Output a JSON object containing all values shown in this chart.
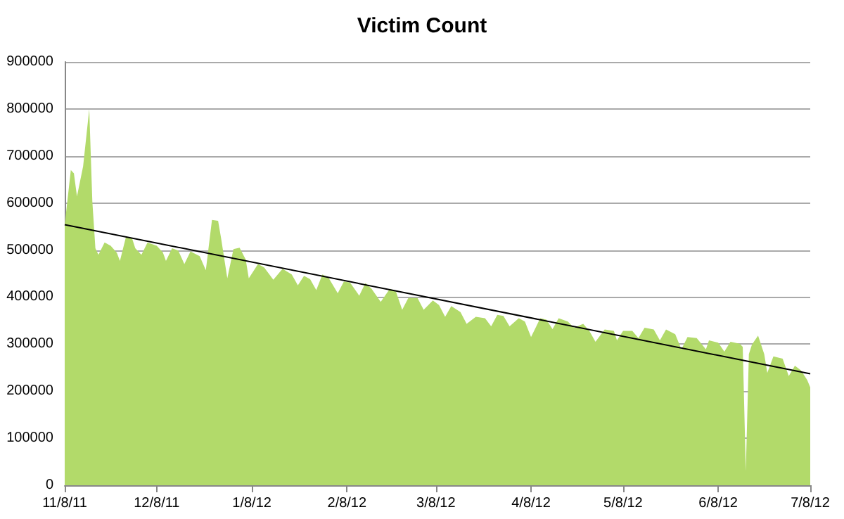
{
  "chart_data": {
    "type": "area",
    "title": "Victim Count",
    "xlim": [
      "2011-11-08",
      "2012-07-08"
    ],
    "xticks": [
      {
        "value": "2011-11-08",
        "label": "11/8/11"
      },
      {
        "value": "2011-12-08",
        "label": "12/8/11"
      },
      {
        "value": "2012-01-08",
        "label": "1/8/12"
      },
      {
        "value": "2012-02-08",
        "label": "2/8/12"
      },
      {
        "value": "2012-03-08",
        "label": "3/8/12"
      },
      {
        "value": "2012-04-08",
        "label": "4/8/12"
      },
      {
        "value": "2012-05-08",
        "label": "5/8/12"
      },
      {
        "value": "2012-06-08",
        "label": "6/8/12"
      },
      {
        "value": "2012-07-08",
        "label": "7/8/12"
      }
    ],
    "ylim": [
      0,
      900000
    ],
    "yticks": [
      0,
      100000,
      200000,
      300000,
      400000,
      500000,
      600000,
      700000,
      800000,
      900000
    ],
    "grid": "y",
    "marker": "none",
    "series": [
      {
        "color": "#b2da6a",
        "x": [
          "2011-11-08",
          "2011-11-10",
          "2011-11-11",
          "2011-11-12",
          "2011-11-14",
          "2011-11-16",
          "2011-11-17",
          "2011-11-18",
          "2011-11-19",
          "2011-11-21",
          "2011-11-23",
          "2011-11-25",
          "2011-11-26",
          "2011-11-28",
          "2011-11-30",
          "2011-12-01",
          "2011-12-03",
          "2011-12-05",
          "2011-12-08",
          "2011-12-10",
          "2011-12-11",
          "2011-12-13",
          "2011-12-15",
          "2011-12-17",
          "2011-12-19",
          "2011-12-22",
          "2011-12-24",
          "2011-12-26",
          "2011-12-28",
          "2011-12-29",
          "2011-12-31",
          "2012-01-02",
          "2012-01-04",
          "2012-01-06",
          "2012-01-07",
          "2012-01-10",
          "2012-01-12",
          "2012-01-15",
          "2012-01-18",
          "2012-01-21",
          "2012-01-23",
          "2012-01-25",
          "2012-01-27",
          "2012-01-29",
          "2012-01-31",
          "2012-02-02",
          "2012-02-05",
          "2012-02-07",
          "2012-02-09",
          "2012-02-12",
          "2012-02-14",
          "2012-02-16",
          "2012-02-19",
          "2012-02-22",
          "2012-02-24",
          "2012-02-26",
          "2012-02-28",
          "2012-03-02",
          "2012-03-04",
          "2012-03-07",
          "2012-03-09",
          "2012-03-11",
          "2012-03-13",
          "2012-03-16",
          "2012-03-18",
          "2012-03-21",
          "2012-03-24",
          "2012-03-26",
          "2012-03-28",
          "2012-03-30",
          "2012-04-01",
          "2012-04-04",
          "2012-04-06",
          "2012-04-08",
          "2012-04-11",
          "2012-04-13",
          "2012-04-15",
          "2012-04-17",
          "2012-04-20",
          "2012-04-22",
          "2012-04-25",
          "2012-04-27",
          "2012-04-29",
          "2012-05-02",
          "2012-05-05",
          "2012-05-06",
          "2012-05-08",
          "2012-05-11",
          "2012-05-13",
          "2012-05-15",
          "2012-05-18",
          "2012-05-20",
          "2012-05-22",
          "2012-05-25",
          "2012-05-27",
          "2012-05-29",
          "2012-06-01",
          "2012-06-04",
          "2012-06-05",
          "2012-06-08",
          "2012-06-10",
          "2012-06-12",
          "2012-06-15",
          "2012-06-16",
          "2012-06-17",
          "2012-06-18",
          "2012-06-19",
          "2012-06-21",
          "2012-06-23",
          "2012-06-24",
          "2012-06-26",
          "2012-06-29",
          "2012-07-01",
          "2012-07-03",
          "2012-07-05",
          "2012-07-07",
          "2012-07-08"
        ],
        "values": [
          554000,
          670000,
          663000,
          614000,
          678000,
          800000,
          604000,
          504000,
          490000,
          516000,
          509000,
          494000,
          477000,
          529000,
          524000,
          504000,
          490000,
          516000,
          509000,
          495000,
          477000,
          504000,
          499000,
          470000,
          497000,
          487000,
          457000,
          564000,
          562000,
          524000,
          440000,
          502000,
          505000,
          480000,
          440000,
          470000,
          463000,
          437000,
          460000,
          448000,
          425000,
          445000,
          438000,
          415000,
          448000,
          441000,
          408000,
          433000,
          431000,
          403000,
          430000,
          418000,
          390000,
          418000,
          411000,
          373000,
          398000,
          398000,
          373000,
          393000,
          383000,
          358000,
          381000,
          368000,
          343000,
          358000,
          355000,
          338000,
          362000,
          360000,
          338000,
          355000,
          348000,
          315000,
          355000,
          352000,
          332000,
          355000,
          348000,
          335000,
          343000,
          328000,
          305000,
          331000,
          328000,
          308000,
          328000,
          328000,
          313000,
          335000,
          331000,
          308000,
          331000,
          321000,
          289000,
          315000,
          313000,
          289000,
          308000,
          303000,
          284000,
          305000,
          301000,
          294000,
          30000,
          279000,
          299000,
          318000,
          279000,
          239000,
          274000,
          269000,
          232000,
          254000,
          244000,
          224000,
          208000
        ]
      },
      {
        "type": "line",
        "color": "#000000",
        "x": [
          "2011-11-08",
          "2012-07-08"
        ],
        "values": [
          554000,
          237000
        ]
      }
    ]
  }
}
